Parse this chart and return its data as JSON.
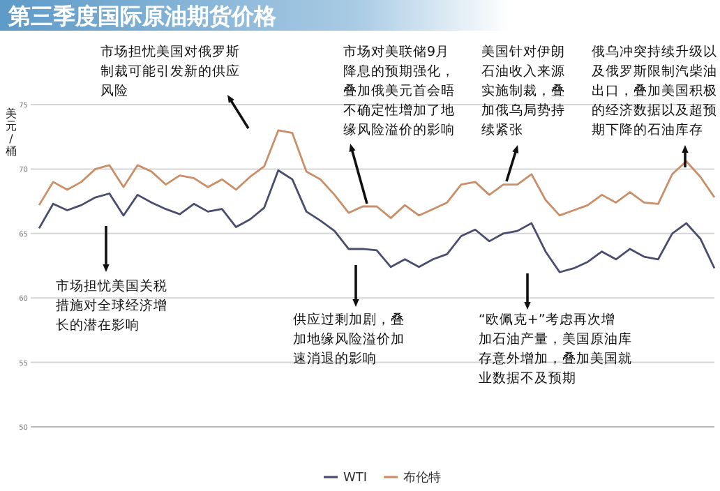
{
  "chart_data": {
    "type": "line",
    "title": "第三季度国际原油期货价格",
    "ylabel": "美元/桶",
    "categories": [
      null,
      null,
      null,
      null,
      null,
      null,
      null,
      null,
      null,
      null,
      null,
      null,
      null,
      null,
      null,
      null,
      null,
      null,
      null,
      null,
      null,
      null,
      null,
      null,
      null,
      null,
      null,
      null,
      null,
      null,
      null,
      null,
      null,
      null,
      null,
      null,
      null,
      null,
      null,
      null,
      null,
      null,
      null,
      null,
      null,
      null,
      null,
      null,
      null
    ],
    "series": [
      {
        "name": "WTI",
        "color": "#4a4e6e",
        "values": [
          65.4,
          67.3,
          66.8,
          67.2,
          67.8,
          68.1,
          66.4,
          68.0,
          67.4,
          66.9,
          66.5,
          67.3,
          66.7,
          66.9,
          65.5,
          66.1,
          67.0,
          69.9,
          69.2,
          66.7,
          66.0,
          65.2,
          63.8,
          63.8,
          63.7,
          62.4,
          63.0,
          62.4,
          63.0,
          63.4,
          64.8,
          65.3,
          64.4,
          65.0,
          65.2,
          65.8,
          63.6,
          62.0,
          62.3,
          62.8,
          63.6,
          63.0,
          63.8,
          63.2,
          63.0,
          65.0,
          65.8,
          64.6,
          62.3
        ]
      },
      {
        "name": "布伦特",
        "color": "#c98f68",
        "values": [
          67.2,
          69.0,
          68.4,
          69.0,
          70.0,
          70.3,
          68.6,
          70.3,
          69.8,
          68.8,
          69.5,
          69.3,
          68.6,
          69.2,
          68.4,
          69.4,
          70.2,
          73.0,
          72.8,
          69.8,
          69.2,
          68.0,
          66.6,
          67.1,
          67.1,
          66.2,
          67.2,
          66.4,
          66.9,
          67.4,
          68.8,
          69.0,
          68.0,
          68.8,
          68.8,
          69.6,
          67.6,
          66.4,
          66.8,
          67.2,
          68.0,
          67.4,
          68.2,
          67.4,
          67.3,
          69.6,
          70.6,
          69.4,
          67.8
        ]
      }
    ],
    "ylim": [
      50,
      75
    ],
    "yticks": [
      50,
      55,
      60,
      65,
      70,
      75
    ],
    "grid": "y",
    "legend": "bottom",
    "marker": "none",
    "line_style": "solid",
    "annotations": [
      "市场担忧美国对俄罗斯制裁可能引发新的供应风险",
      "市场对美联储9月降息的预期强化，叠加俄美元首会晤不确定性增加了地缘风险溢价的影响",
      "美国针对伊朗石油收入来源实施制裁，叠加俄乌局势持续紧张",
      "俄乌冲突持续升级以及俄罗斯限制汽柴油出口，叠加美国积极的经济数据以及超预期下降的石油库存",
      "市场担忧美国关税措施对全球经济增长的潜在影响",
      "供应过剩加剧，叠加地缘风险溢价加速消退的影响",
      "“欧佩克+”考虑再次增加石油产量，美国原油库存意外增加，叠加美国就业数据不及预期"
    ]
  }
}
